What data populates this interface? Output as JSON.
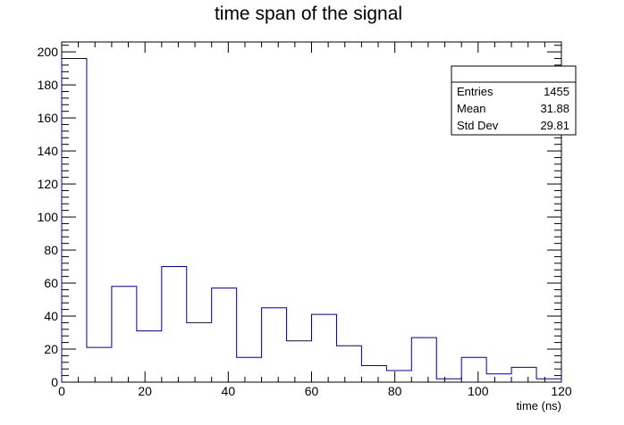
{
  "chart_data": {
    "type": "histogram",
    "title": "time span of the signal",
    "xlabel": "time (ns)",
    "ylabel": "",
    "xlim": [
      0,
      120
    ],
    "ylim": [
      0,
      206
    ],
    "bin_width": 6,
    "bin_edges": [
      0,
      6,
      12,
      18,
      24,
      30,
      36,
      42,
      48,
      54,
      60,
      66,
      72,
      78,
      84,
      90,
      96,
      102,
      108,
      114,
      120
    ],
    "values": [
      196,
      21,
      58,
      31,
      70,
      36,
      57,
      15,
      45,
      25,
      41,
      22,
      10,
      7,
      27,
      2,
      15,
      5,
      9,
      2
    ],
    "x_ticks": [
      0,
      20,
      40,
      60,
      80,
      100,
      120
    ],
    "y_ticks": [
      0,
      20,
      40,
      60,
      80,
      100,
      120,
      140,
      160,
      180,
      200
    ],
    "line_color": "#000099",
    "grid": false,
    "stats_box": {
      "placement": "top-right",
      "title": "",
      "rows": [
        {
          "label": "Entries",
          "value": "1455"
        },
        {
          "label": "Mean",
          "value": "31.88"
        },
        {
          "label": "Std Dev",
          "value": "29.81"
        }
      ]
    }
  }
}
